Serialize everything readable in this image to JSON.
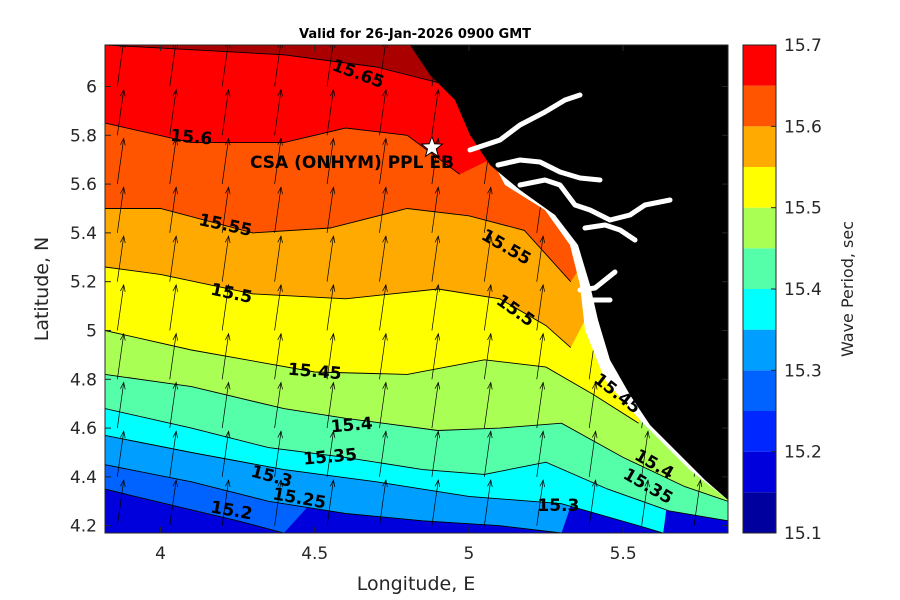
{
  "title": "Valid for 26-Jan-2026 0900 GMT",
  "site_label": "CSA (ONHYM) PPL EB",
  "colors": {
    "land": "#000000",
    "water_gap": "#ffffff",
    "contour_line": "#000000",
    "arrow": "#000000"
  },
  "chart_data": {
    "type": "contour-map",
    "title": "Valid for 26-Jan-2026 0900 GMT",
    "xlabel": "Longitude, E",
    "ylabel": "Latitude, N",
    "xlim": [
      3.82,
      5.84
    ],
    "ylim": [
      4.17,
      6.17
    ],
    "xticks": [
      {
        "value": 4,
        "label": "4"
      },
      {
        "value": 4.5,
        "label": "4.5"
      },
      {
        "value": 5,
        "label": "5"
      },
      {
        "value": 5.5,
        "label": "5.5"
      }
    ],
    "yticks": [
      {
        "value": 4.2,
        "label": "4.2"
      },
      {
        "value": 4.4,
        "label": "4.4"
      },
      {
        "value": 4.6,
        "label": "4.6"
      },
      {
        "value": 4.8,
        "label": "4.8"
      },
      {
        "value": 5.0,
        "label": "5"
      },
      {
        "value": 5.2,
        "label": "5.2"
      },
      {
        "value": 5.4,
        "label": "5.4"
      },
      {
        "value": 5.6,
        "label": "5.6"
      },
      {
        "value": 5.8,
        "label": "5.8"
      },
      {
        "value": 6.0,
        "label": "6"
      }
    ],
    "colorbar": {
      "label": "Wave Period, sec",
      "min": 15.1,
      "max": 15.7,
      "step": 0.05,
      "colors": [
        "#00009f",
        "#0000dd",
        "#0027ff",
        "#0063ff",
        "#009fff",
        "#00ffff",
        "#55ffaa",
        "#aaff55",
        "#ffff00",
        "#ffaa00",
        "#ff5500",
        "#ff0000",
        "#aa0000"
      ],
      "ticks": [
        {
          "value": 15.1,
          "label": "15.1"
        },
        {
          "value": 15.2,
          "label": "15.2"
        },
        {
          "value": 15.3,
          "label": "15.3"
        },
        {
          "value": 15.4,
          "label": "15.4"
        },
        {
          "value": 15.5,
          "label": "15.5"
        },
        {
          "value": 15.6,
          "label": "15.6"
        },
        {
          "value": 15.7,
          "label": "15.7"
        }
      ]
    },
    "contours": [
      {
        "level": 15.65,
        "label": "15.65",
        "points": [
          [
            3.82,
            6.17
          ],
          [
            4.4,
            6.13
          ],
          [
            4.7,
            6.08
          ],
          [
            4.95,
            6.0
          ],
          [
            5.0,
            5.9
          ]
        ],
        "label_at": [
          4.64,
          6.05
        ],
        "label_angle": 20
      },
      {
        "level": 15.6,
        "label": "15.6",
        "points": [
          [
            3.82,
            5.85
          ],
          [
            4.1,
            5.77
          ],
          [
            4.4,
            5.77
          ],
          [
            4.6,
            5.83
          ],
          [
            4.8,
            5.8
          ],
          [
            4.97,
            5.64
          ]
        ],
        "label_at": [
          4.1,
          5.79
        ],
        "label_angle": 5
      },
      {
        "level": 15.55,
        "label": "15.55",
        "points": [
          [
            3.82,
            5.5
          ],
          [
            4.0,
            5.5
          ],
          [
            4.3,
            5.4
          ],
          [
            4.55,
            5.42
          ],
          [
            4.8,
            5.5
          ],
          [
            5.0,
            5.47
          ],
          [
            5.18,
            5.41
          ],
          [
            5.33,
            5.2
          ]
        ],
        "label_at": [
          4.21,
          5.43
        ],
        "label_angle": 12
      },
      {
        "level": 15.55,
        "label": "15.55",
        "points": [],
        "label_at": [
          5.12,
          5.34
        ],
        "label_angle": 30
      },
      {
        "level": 15.5,
        "label": "15.5",
        "points": [
          [
            3.82,
            5.26
          ],
          [
            4.0,
            5.23
          ],
          [
            4.3,
            5.15
          ],
          [
            4.6,
            5.13
          ],
          [
            4.9,
            5.17
          ],
          [
            5.1,
            5.13
          ],
          [
            5.25,
            5.02
          ],
          [
            5.33,
            4.93
          ]
        ],
        "label_at": [
          4.23,
          5.15
        ],
        "label_angle": 12
      },
      {
        "level": 15.5,
        "label": "15.5",
        "points": [],
        "label_at": [
          5.15,
          5.08
        ],
        "label_angle": 35
      },
      {
        "level": 15.45,
        "label": "15.45",
        "points": [
          [
            3.82,
            5.0
          ],
          [
            4.1,
            4.92
          ],
          [
            4.5,
            4.83
          ],
          [
            4.8,
            4.82
          ],
          [
            5.05,
            4.88
          ],
          [
            5.25,
            4.85
          ],
          [
            5.4,
            4.74
          ],
          [
            5.55,
            4.62
          ]
        ],
        "label_at": [
          4.5,
          4.83
        ],
        "label_angle": 5
      },
      {
        "level": 15.45,
        "label": "15.45",
        "points": [],
        "label_at": [
          5.48,
          4.74
        ],
        "label_angle": 38
      },
      {
        "level": 15.4,
        "label": "15.4",
        "points": [
          [
            3.82,
            4.82
          ],
          [
            4.1,
            4.77
          ],
          [
            4.4,
            4.68
          ],
          [
            4.6,
            4.64
          ],
          [
            4.9,
            4.59
          ],
          [
            5.1,
            4.6
          ],
          [
            5.3,
            4.62
          ],
          [
            5.5,
            4.48
          ],
          [
            5.7,
            4.36
          ],
          [
            5.84,
            4.3
          ]
        ],
        "label_at": [
          4.62,
          4.61
        ],
        "label_angle": -5
      },
      {
        "level": 15.4,
        "label": "15.4",
        "points": [],
        "label_at": [
          5.6,
          4.45
        ],
        "label_angle": 30
      },
      {
        "level": 15.35,
        "label": "15.35",
        "points": [
          [
            3.82,
            4.68
          ],
          [
            4.1,
            4.6
          ],
          [
            4.35,
            4.52
          ],
          [
            4.6,
            4.48
          ],
          [
            4.85,
            4.43
          ],
          [
            5.05,
            4.41
          ],
          [
            5.25,
            4.46
          ],
          [
            5.45,
            4.35
          ],
          [
            5.65,
            4.26
          ],
          [
            5.84,
            4.22
          ]
        ],
        "label_at": [
          4.55,
          4.48
        ],
        "label_angle": -5
      },
      {
        "level": 15.35,
        "label": "15.35",
        "points": [],
        "label_at": [
          5.58,
          4.36
        ],
        "label_angle": 30
      },
      {
        "level": 15.3,
        "label": "15.3",
        "points": [
          [
            3.82,
            4.57
          ],
          [
            4.1,
            4.5
          ],
          [
            4.4,
            4.43
          ],
          [
            4.7,
            4.38
          ],
          [
            5.0,
            4.32
          ],
          [
            5.3,
            4.29
          ],
          [
            5.55,
            4.2
          ],
          [
            5.63,
            4.17
          ]
        ],
        "label_at": [
          4.36,
          4.4
        ],
        "label_angle": 15
      },
      {
        "level": 15.3,
        "label": "15.3",
        "points": [],
        "label_at": [
          5.29,
          4.28
        ],
        "label_angle": 0
      },
      {
        "level": 15.25,
        "label": "15.25",
        "points": [
          [
            3.82,
            4.45
          ],
          [
            4.1,
            4.38
          ],
          [
            4.35,
            4.3
          ],
          [
            4.6,
            4.25
          ],
          [
            4.85,
            4.22
          ],
          [
            5.1,
            4.2
          ],
          [
            5.3,
            4.17
          ]
        ],
        "label_at": [
          4.45,
          4.31
        ],
        "label_angle": 10
      },
      {
        "level": 15.2,
        "label": "15.2",
        "points": [
          [
            3.82,
            4.35
          ],
          [
            4.05,
            4.28
          ],
          [
            4.25,
            4.22
          ],
          [
            4.4,
            4.17
          ]
        ],
        "label_at": [
          4.23,
          4.26
        ],
        "label_angle": 10
      }
    ],
    "site": {
      "lon": 4.88,
      "lat": 5.75
    },
    "arrows": {
      "lon": [
        3.86,
        4.03,
        4.2,
        4.37,
        4.54,
        4.71,
        4.88,
        5.05,
        5.22,
        5.39,
        5.56,
        5.73
      ],
      "lat": [
        4.2,
        4.4,
        4.6,
        4.8,
        5.0,
        5.2,
        5.4,
        5.6,
        5.8,
        6.0,
        6.17
      ],
      "direction_deg": 8
    }
  }
}
